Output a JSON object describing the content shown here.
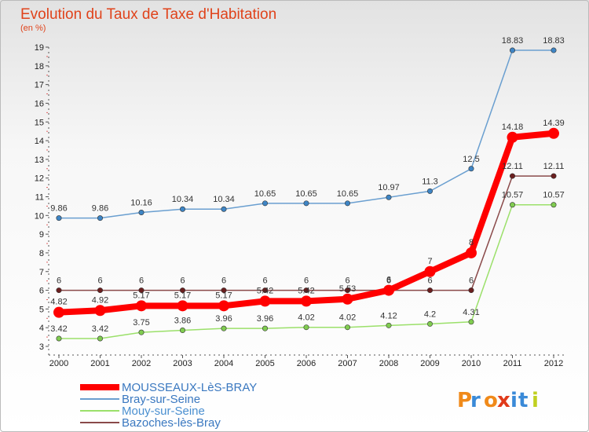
{
  "chart_data": {
    "type": "line",
    "title": "Evolution du Taux de Taxe d'Habitation",
    "subtitle": "(en %)",
    "x": [
      "2000",
      "2001",
      "2002",
      "2003",
      "2004",
      "2005",
      "2006",
      "2007",
      "2008",
      "2009",
      "2010",
      "2011",
      "2012"
    ],
    "ylim": [
      3,
      19
    ],
    "yticks": [
      "3",
      "4",
      "5",
      "6",
      "7",
      "8",
      "9",
      "10",
      "11",
      "12",
      "13",
      "14",
      "15",
      "16",
      "17",
      "18",
      "19"
    ],
    "grid": false,
    "legend_position": "bottom-left",
    "series": [
      {
        "name": "Bray-sur-Seine",
        "color": "#6a9fd0",
        "marker": "#3e85c5",
        "values": [
          9.86,
          9.86,
          10.16,
          10.34,
          10.34,
          10.65,
          10.65,
          10.65,
          10.97,
          11.3,
          12.5,
          18.83,
          18.83
        ],
        "labels": [
          "9.86",
          "9.86",
          "10.16",
          "10.34",
          "10.34",
          "10.65",
          "10.65",
          "10.65",
          "10.97",
          "11.3",
          "12.5",
          "18.83",
          "18.83"
        ]
      },
      {
        "name": "Mouy-sur-Seine",
        "color": "#9be06a",
        "marker": "#80cc50",
        "values": [
          3.42,
          3.42,
          3.75,
          3.86,
          3.96,
          3.96,
          4.02,
          4.02,
          4.12,
          4.2,
          4.31,
          10.57,
          10.57
        ],
        "labels": [
          "3.42",
          "3.42",
          "3.75",
          "3.86",
          "3.96",
          "3.96",
          "4.02",
          "4.02",
          "4.12",
          "4.2",
          "4.31",
          "10.57",
          "10.57"
        ]
      },
      {
        "name": "Bazoches-lès-Bray",
        "color": "#8a4a4a",
        "marker": "#6a1e1e",
        "values": [
          6,
          6,
          6,
          6,
          6,
          6,
          6,
          6,
          6,
          6,
          6,
          12.11,
          12.11
        ],
        "labels": [
          "6",
          "6",
          "6",
          "6",
          "6",
          "6",
          "6",
          "6",
          "6",
          "6",
          "6",
          "12.11",
          "12.11"
        ]
      },
      {
        "name": "MOUSSEAUX-LèS-BRAY",
        "color": "#ff0000",
        "marker": "#ff0000",
        "values": [
          4.82,
          4.92,
          5.17,
          5.17,
          5.17,
          5.42,
          5.42,
          5.53,
          6,
          7,
          8,
          14.18,
          14.39
        ],
        "labels": [
          "4.82",
          "4.92",
          "5.17",
          "5.17",
          "5.17",
          "5.42",
          "5.42",
          "5.53",
          "6",
          "7",
          "8",
          "14.18",
          "14.39"
        ]
      }
    ],
    "legend_order": [
      3,
      0,
      1,
      2
    ]
  },
  "logo": {
    "text": "Proxiti",
    "letters": [
      "P",
      "r",
      "o",
      "x",
      "i",
      "t",
      "i"
    ]
  }
}
